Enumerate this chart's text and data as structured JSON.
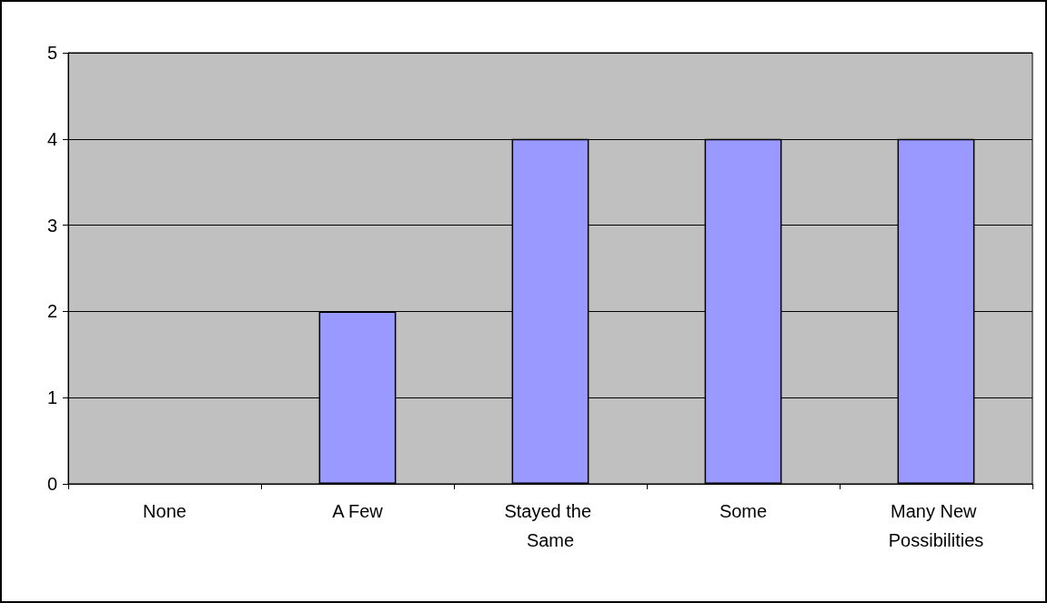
{
  "chart_data": {
    "type": "bar",
    "categories": [
      "None",
      "A Few",
      "Stayed the Same",
      "Some",
      "Many New Possibilities"
    ],
    "values": [
      0,
      2,
      4,
      4,
      4
    ],
    "color": "#9999ff",
    "ylim": [
      0,
      5
    ],
    "yticks": [
      0,
      1,
      2,
      3,
      4,
      5
    ],
    "grid": "y"
  }
}
